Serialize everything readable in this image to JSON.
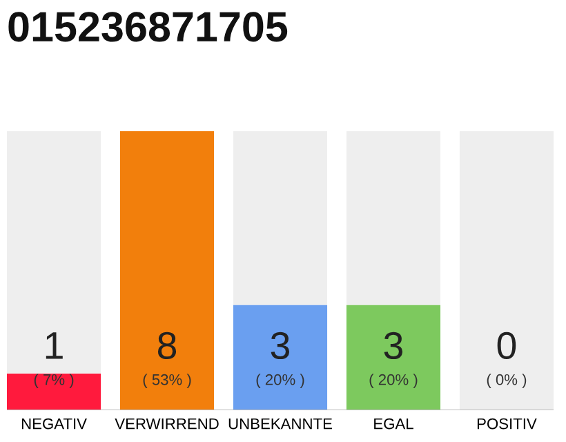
{
  "chart_data": {
    "type": "bar",
    "title": "015236871705",
    "stacked": true,
    "categories": [
      "NEGATIV",
      "VERWIRREND",
      "UNBEKANNTE",
      "EGAL",
      "POSITIV"
    ],
    "series": [
      {
        "colors": [
          "#ff1a3d",
          "#f27f0c",
          "#6a9ff0",
          "#7dc95e",
          "#cccccc"
        ],
        "values": [
          7,
          53,
          20,
          20,
          0
        ],
        "value_labels": [
          "( 7% )",
          "( 53% )",
          "( 20% )",
          "( 20% )",
          null
        ]
      },
      {
        "color": "#eeeeee",
        "values": [
          46,
          0,
          33,
          33,
          53
        ]
      }
    ],
    "annotations": [
      "1",
      "8",
      "3",
      "3",
      "0",
      "( 0% )"
    ],
    "grid": false,
    "legend": false
  }
}
